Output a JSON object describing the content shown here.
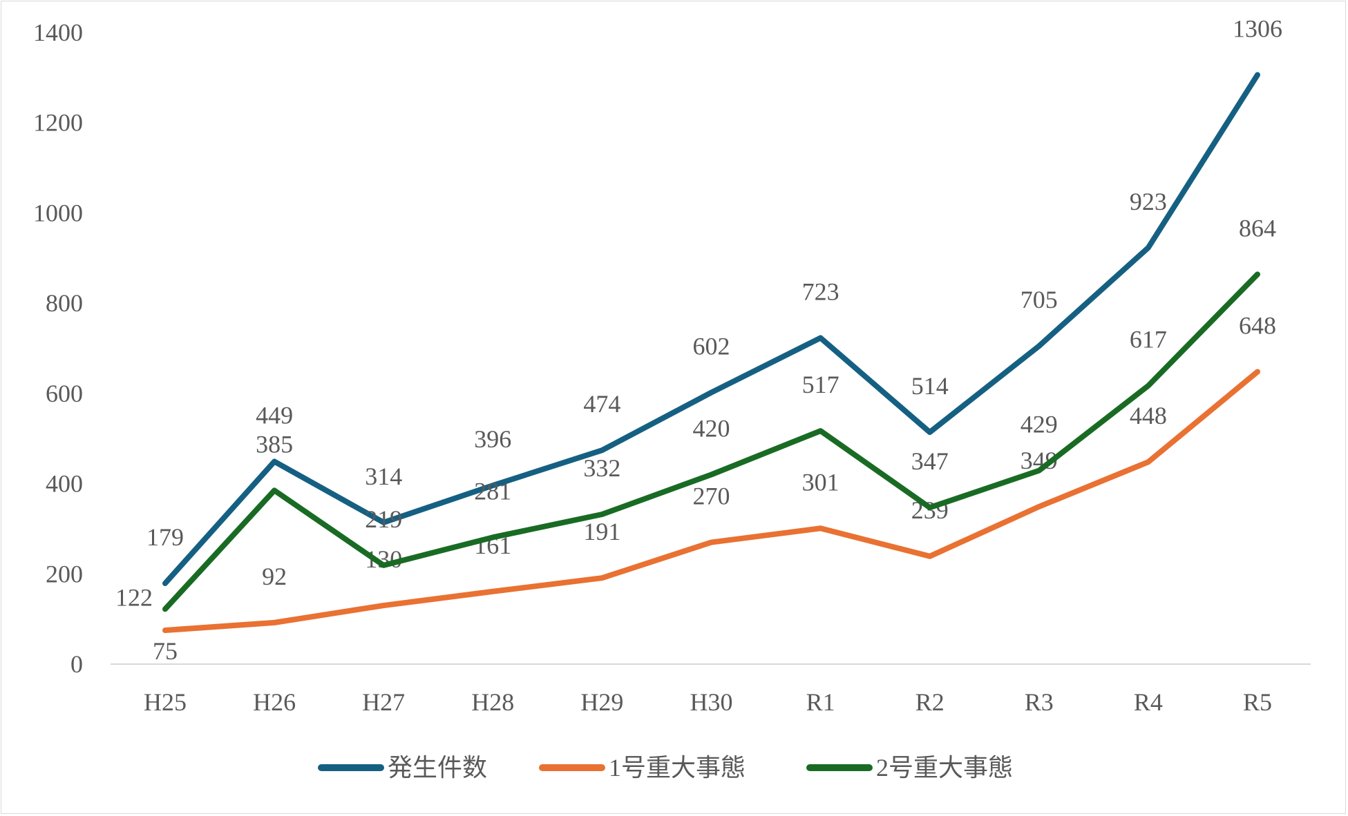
{
  "chart_data": {
    "type": "line",
    "title": "",
    "xlabel": "",
    "ylabel": "",
    "categories": [
      "H25",
      "H26",
      "H27",
      "H28",
      "H29",
      "H30",
      "R1",
      "R2",
      "R3",
      "R4",
      "R5"
    ],
    "ylim": [
      0,
      1400
    ],
    "yticks": [
      0,
      200,
      400,
      600,
      800,
      1000,
      1200,
      1400
    ],
    "grid": false,
    "legend_position": "bottom",
    "series": [
      {
        "name": "発生件数",
        "color": "#156082",
        "values": [
          179,
          449,
          314,
          396,
          474,
          602,
          723,
          514,
          705,
          923,
          1306
        ]
      },
      {
        "name": "1号重大事態",
        "color": "#E97132",
        "values": [
          75,
          92,
          130,
          161,
          191,
          270,
          301,
          239,
          349,
          448,
          648
        ]
      },
      {
        "name": "2号重大事態",
        "color": "#196B24",
        "values": [
          122,
          385,
          219,
          281,
          332,
          420,
          517,
          347,
          429,
          617,
          864
        ]
      }
    ]
  }
}
